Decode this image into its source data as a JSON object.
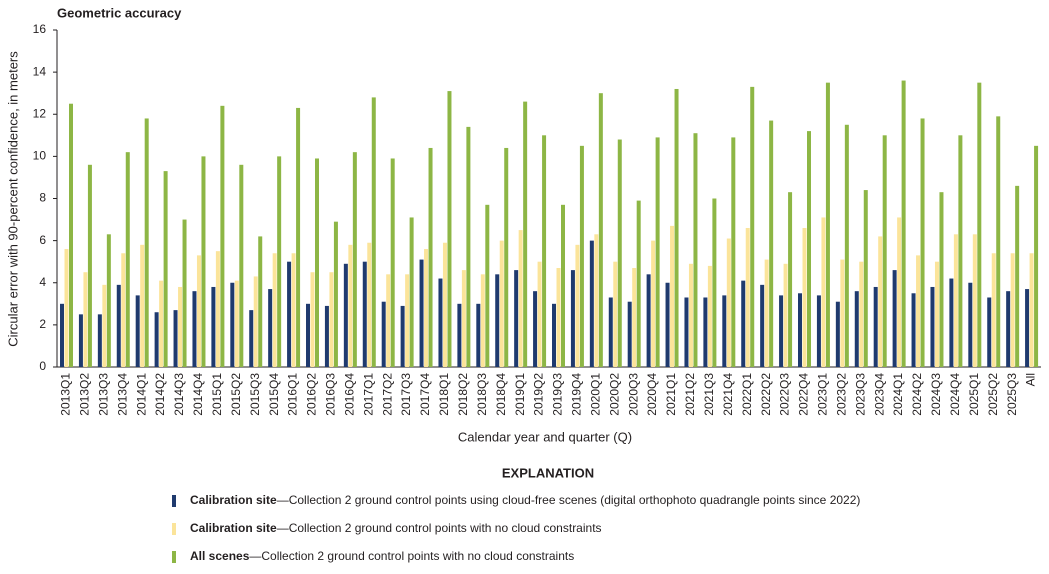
{
  "chart_data": {
    "type": "bar",
    "title": "Geometric accuracy",
    "y_label": "Circular error with 90-percent confidence, in meters",
    "x_label": "Calendar year and quarter (Q)",
    "legend_title": "EXPLANATION",
    "categories": [
      "2013Q1",
      "2013Q2",
      "2013Q3",
      "2013Q4",
      "2014Q1",
      "2014Q2",
      "2014Q3",
      "2014Q4",
      "2015Q1",
      "2015Q2",
      "2015Q3",
      "2015Q4",
      "2016Q1",
      "2016Q2",
      "2016Q3",
      "2016Q4",
      "2017Q1",
      "2017Q2",
      "2017Q3",
      "2017Q4",
      "2018Q1",
      "2018Q2",
      "2018Q3",
      "2018Q4",
      "2019Q1",
      "2019Q2",
      "2019Q3",
      "2019Q4",
      "2020Q1",
      "2020Q2",
      "2020Q3",
      "2020Q4",
      "2021Q1",
      "2021Q2",
      "2021Q3",
      "2021Q4",
      "2022Q1",
      "2022Q2",
      "2022Q3",
      "2022Q4",
      "2023Q1",
      "2023Q2",
      "2023Q3",
      "2023Q4",
      "2024Q1",
      "2024Q2",
      "2024Q3",
      "2024Q4",
      "2025Q1",
      "2025Q2",
      "2025Q3",
      "All"
    ],
    "series": [
      {
        "name": "Calibration site",
        "description": "—Collection 2 ground control points using cloud-free scenes (digital orthophoto quadrangle points since 2022)",
        "color": "#1f3a6e",
        "values": [
          3.0,
          2.5,
          2.5,
          3.9,
          3.4,
          2.6,
          2.7,
          3.6,
          3.8,
          4.0,
          2.7,
          3.7,
          5.0,
          3.0,
          2.9,
          4.9,
          5.0,
          3.1,
          2.9,
          5.1,
          4.2,
          3.0,
          3.0,
          4.4,
          4.6,
          3.6,
          3.0,
          4.6,
          6.0,
          3.3,
          3.1,
          4.4,
          4.0,
          3.3,
          3.3,
          3.4,
          4.1,
          3.9,
          3.4,
          3.5,
          3.4,
          3.1,
          3.6,
          3.8,
          4.6,
          3.5,
          3.8,
          4.2,
          4.0,
          3.3,
          3.6,
          3.7
        ]
      },
      {
        "name": "Calibration site",
        "description": "—Collection 2 ground control points with no cloud constraints",
        "color": "#fbe49a",
        "values": [
          5.6,
          4.5,
          3.9,
          5.4,
          5.8,
          4.1,
          3.8,
          5.3,
          5.5,
          4.1,
          4.3,
          5.4,
          5.4,
          4.5,
          4.5,
          5.8,
          5.9,
          4.4,
          4.4,
          5.6,
          5.9,
          4.6,
          4.4,
          6.0,
          6.5,
          5.0,
          4.7,
          5.8,
          6.3,
          5.0,
          4.7,
          6.0,
          6.7,
          4.9,
          4.8,
          6.1,
          6.6,
          5.1,
          4.9,
          6.6,
          7.1,
          5.1,
          5.0,
          6.2,
          7.1,
          5.3,
          5.0,
          6.3,
          6.3,
          5.4,
          5.4,
          5.4
        ]
      },
      {
        "name": "All scenes",
        "description": "—Collection 2 ground control points with no cloud constraints",
        "color": "#8db645",
        "values": [
          12.5,
          9.6,
          6.3,
          10.2,
          11.8,
          9.3,
          7.0,
          10.0,
          12.4,
          9.6,
          6.2,
          10.0,
          12.3,
          9.9,
          6.9,
          10.2,
          12.8,
          9.9,
          7.1,
          10.4,
          13.1,
          11.4,
          7.7,
          10.4,
          12.6,
          11.0,
          7.7,
          10.5,
          13.0,
          10.8,
          7.9,
          10.9,
          13.2,
          11.1,
          8.0,
          10.9,
          13.3,
          11.7,
          8.3,
          11.2,
          13.5,
          11.5,
          8.4,
          11.0,
          13.6,
          11.8,
          8.3,
          11.0,
          13.5,
          11.9,
          8.6,
          10.5
        ]
      }
    ],
    "ylim": [
      0,
      16
    ],
    "yticks": [
      0,
      2,
      4,
      6,
      8,
      10,
      12,
      14,
      16
    ]
  }
}
